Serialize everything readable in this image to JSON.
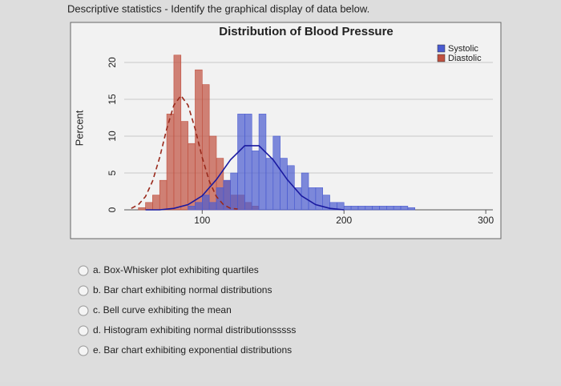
{
  "header": "Descriptive statistics - Identify the graphical display of data below.",
  "chart_data": {
    "type": "histogram",
    "title": "Distribution of Blood Pressure",
    "y_label": "Percent",
    "xlim": [
      45,
      305
    ],
    "xticks": [
      100,
      200,
      300
    ],
    "ylim": [
      0,
      23
    ],
    "yticks": [
      0,
      5,
      10,
      15,
      20
    ],
    "grid": true,
    "legend": "top-right",
    "series": [
      {
        "name": "Systolic",
        "color": "#4a5bd0",
        "bins": [
          90,
          95,
          100,
          105,
          110,
          115,
          120,
          125,
          130,
          135,
          140,
          145,
          150,
          155,
          160,
          165,
          170,
          175,
          180,
          185,
          190,
          195,
          200,
          205,
          210,
          215,
          220,
          225,
          230,
          235,
          240,
          245,
          250
        ],
        "values": [
          0.5,
          1,
          2,
          1,
          3,
          4,
          5,
          13,
          13,
          8,
          13,
          7,
          10,
          7,
          6,
          3,
          5,
          3,
          3,
          2,
          1,
          1,
          0.5,
          0.5,
          0.5,
          0.5,
          0.5,
          0.5,
          0.5,
          0.5,
          0.5,
          0.3
        ]
      },
      {
        "name": "Diastolic",
        "color": "#c0503f",
        "bins": [
          55,
          60,
          65,
          70,
          75,
          80,
          85,
          90,
          95,
          100,
          105,
          110,
          115,
          120,
          125,
          130,
          135,
          140
        ],
        "values": [
          0.3,
          1,
          2,
          4,
          13,
          21,
          12,
          9,
          19,
          17,
          10,
          7,
          4,
          2,
          2,
          1,
          0.5
        ]
      }
    ],
    "curves": [
      {
        "color": "#1a1aa0",
        "dash": false,
        "x": [
          60,
          70,
          80,
          90,
          100,
          110,
          120,
          130,
          140,
          150,
          160,
          170,
          180,
          190,
          200
        ],
        "y": [
          0,
          0,
          0.2,
          0.7,
          1.9,
          4.1,
          6.8,
          8.7,
          8.7,
          6.8,
          4.1,
          1.9,
          0.7,
          0.2,
          0
        ]
      },
      {
        "color": "#9a2a1c",
        "dash": true,
        "x": [
          50,
          55,
          60,
          65,
          70,
          75,
          80,
          85,
          90,
          95,
          100,
          105,
          110,
          115,
          120,
          125
        ],
        "y": [
          0.2,
          0.7,
          1.8,
          3.9,
          7.1,
          11.0,
          14.2,
          15.5,
          14.2,
          11.0,
          7.1,
          3.9,
          1.8,
          0.7,
          0.2,
          0.1
        ]
      }
    ]
  },
  "options": [
    "a. Box-Whisker plot exhibiting quartiles",
    "b. Bar chart exhibiting normal distributions",
    "c. Bell curve exhibiting the mean",
    "d. Histogram exhibiting normal distributionsssss",
    "e. Bar chart exhibiting exponential distributions"
  ]
}
